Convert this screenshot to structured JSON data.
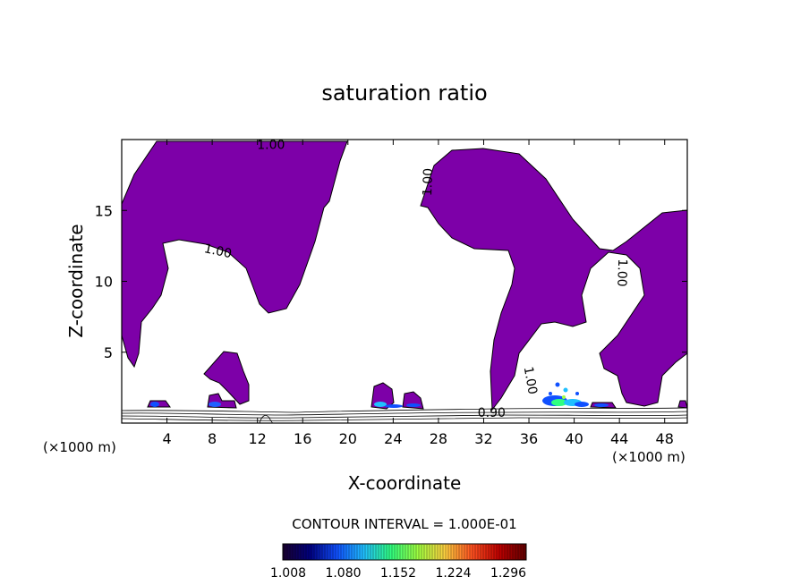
{
  "chart_data": {
    "type": "contour",
    "title": "saturation ratio",
    "xlabel": "X-coordinate",
    "ylabel": "Z-coordinate",
    "x_unit": "(×1000 m)",
    "xlim": [
      0,
      50
    ],
    "ylim": [
      0,
      20
    ],
    "x_ticks": [
      4,
      8,
      12,
      16,
      20,
      24,
      28,
      32,
      36,
      40,
      44,
      48
    ],
    "y_ticks": [
      5,
      10,
      15
    ],
    "contour_labels": [
      {
        "text": "1.00",
        "x": 13.2,
        "z": 19.6,
        "rotate": 0
      },
      {
        "text": "1.00",
        "x": 8.5,
        "z": 12.1,
        "rotate": 12
      },
      {
        "text": "1.00",
        "x": 27.1,
        "z": 17.0,
        "rotate": -88
      },
      {
        "text": "1.00",
        "x": 44.2,
        "z": 10.6,
        "rotate": 92
      },
      {
        "text": "1.00",
        "x": 36.1,
        "z": 3.0,
        "rotate": 80
      },
      {
        "text": "0.90",
        "x": 32.7,
        "z": 0.7,
        "rotate": 0
      }
    ],
    "contour_interval_text": "CONTOUR INTERVAL = 1.000E-01",
    "colorbar": {
      "tick_labels": [
        "1.008",
        "1.080",
        "1.152",
        "1.224",
        "1.296"
      ],
      "colors": [
        "#1a0030",
        "#000080",
        "#1050ff",
        "#20c0ff",
        "#30ff80",
        "#a0ff40",
        "#ffd040",
        "#ff5020",
        "#c00000",
        "#600000"
      ]
    },
    "fill_color": "#7d00a8"
  }
}
